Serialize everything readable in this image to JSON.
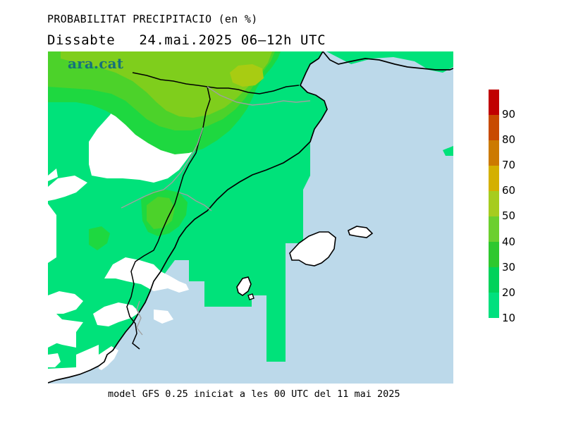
{
  "header": {
    "title": "PROBABILITAT PRECIPITACIO (en %)",
    "day": "Dissabte",
    "date": "24.mai.2025",
    "period": "06–12h UTC"
  },
  "logo": {
    "text": "ara.cat"
  },
  "footer": {
    "text": "model GFS 0.25 iniciat a les 00 UTC del 11 mai 2025"
  },
  "legend": {
    "labels": [
      "90",
      "80",
      "70",
      "60",
      "50",
      "40",
      "30",
      "20",
      "10"
    ],
    "colors": [
      "#c00000",
      "#c84a00",
      "#cc7a00",
      "#d4b000",
      "#a6cc1f",
      "#6ccf2e",
      "#2ec82e",
      "#00d25a",
      "#00e07e"
    ]
  },
  "map_colors": {
    "sea": "#bcd9ea",
    "prob_10_20": "#00e27a",
    "prob_20_30": "#1ed840",
    "prob_30_40": "#4cd22a",
    "prob_40_50": "#7fce1c",
    "prob_50_60": "#a8cc12",
    "coast": "#000000",
    "border": "#a0a0a0"
  }
}
